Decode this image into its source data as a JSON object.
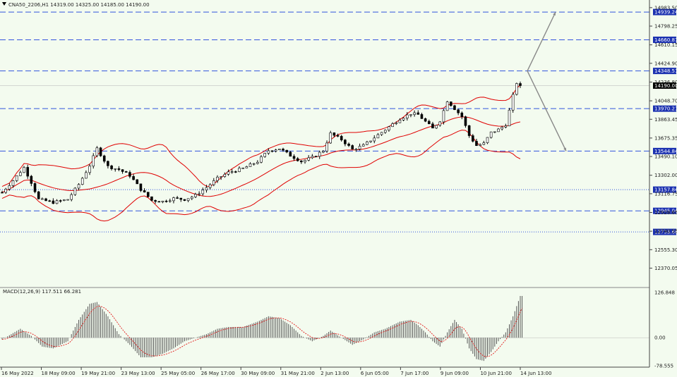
{
  "header": {
    "symbol_text": "CNA50_2206,H1  14319.00 14325.00 14185.00 14190.00",
    "macd_text": "MACD(12,26,9) 117.511 66.281"
  },
  "colors": {
    "background": "#f3fbef",
    "candles": "#000000",
    "bollinger": "#e00000",
    "level_lines": "#3355dd",
    "arrows": "#888888",
    "macd_histogram": "#555555",
    "macd_signal": "#e00000"
  },
  "chart_data": [
    {
      "type": "candlestick",
      "ylim": [
        12190,
        15060
      ],
      "price_ticks": [
        "14983.50",
        "14798.25",
        "14610.15",
        "14424.90",
        "14236.80",
        "14048.70",
        "13863.45",
        "13675.35",
        "13490.10",
        "13302.00",
        "13116.75",
        "12928.65",
        "12740.55",
        "12555.30",
        "12370.05"
      ],
      "time_labels": [
        "16 May 2022",
        "18 May 09:00",
        "19 May 21:00",
        "23 May 13:00",
        "25 May 05:00",
        "26 May 17:00",
        "30 May 09:00",
        "31 May 21:00",
        "2 Jun 13:00",
        "6 Jun 05:00",
        "7 Jun 17:00",
        "9 Jun 09:00",
        "10 Jun 21:00",
        "14 Jun 13:00"
      ],
      "current_price": "14190.00",
      "levels": [
        {
          "value": 14939.24,
          "label": "14939.24",
          "style": "dashed"
        },
        {
          "value": 14660.87,
          "label": "14660.87",
          "style": "dashed"
        },
        {
          "value": 14348.51,
          "label": "14348.51",
          "style": "dashed"
        },
        {
          "value": 13970.21,
          "label": "13970.21",
          "style": "dashed"
        },
        {
          "value": 13544.84,
          "label": "13544.84",
          "style": "dashed"
        },
        {
          "value": 13157.84,
          "label": "13157.84",
          "style": "dotted"
        },
        {
          "value": 12945.04,
          "label": "12945.04",
          "style": "dashed"
        },
        {
          "value": 12733.68,
          "label": "12733.68",
          "style": "dotted"
        }
      ],
      "arrows": [
        [
          [
            0.0,
            14348
          ],
          [
            8.0,
            14939
          ]
        ],
        [
          [
            0.0,
            14348
          ],
          [
            11.0,
            13544
          ]
        ]
      ],
      "price_path": [
        [
          0,
          13130
        ],
        [
          3,
          13250
        ],
        [
          6,
          13380
        ],
        [
          8,
          13230
        ],
        [
          10,
          13060
        ],
        [
          14,
          13030
        ],
        [
          18,
          13060
        ],
        [
          21,
          13210
        ],
        [
          24,
          13400
        ],
        [
          26,
          13570
        ],
        [
          29,
          13390
        ],
        [
          32,
          13360
        ],
        [
          35,
          13300
        ],
        [
          38,
          13160
        ],
        [
          41,
          13050
        ],
        [
          44,
          13040
        ],
        [
          47,
          13070
        ],
        [
          50,
          13060
        ],
        [
          53,
          13100
        ],
        [
          56,
          13180
        ],
        [
          59,
          13270
        ],
        [
          62,
          13330
        ],
        [
          66,
          13370
        ],
        [
          70,
          13440
        ],
        [
          73,
          13550
        ],
        [
          76,
          13570
        ],
        [
          79,
          13500
        ],
        [
          82,
          13440
        ],
        [
          85,
          13480
        ],
        [
          88,
          13550
        ],
        [
          90,
          13720
        ],
        [
          93,
          13660
        ],
        [
          96,
          13560
        ],
        [
          99,
          13600
        ],
        [
          102,
          13680
        ],
        [
          105,
          13760
        ],
        [
          109,
          13870
        ],
        [
          112,
          13920
        ],
        [
          114,
          13910
        ],
        [
          116,
          13840
        ],
        [
          118,
          13770
        ],
        [
          120,
          13850
        ],
        [
          122,
          14050
        ],
        [
          124,
          13970
        ],
        [
          126,
          13890
        ],
        [
          128,
          13700
        ],
        [
          130,
          13600
        ],
        [
          132,
          13620
        ],
        [
          134,
          13730
        ],
        [
          136,
          13760
        ],
        [
          138,
          13810
        ],
        [
          139,
          13950
        ],
        [
          140,
          14100
        ],
        [
          141,
          14230
        ],
        [
          142,
          14190
        ]
      ],
      "macd_path": [
        [
          0,
          -5
        ],
        [
          5,
          25
        ],
        [
          8,
          5
        ],
        [
          11,
          -25
        ],
        [
          14,
          -30
        ],
        [
          18,
          -10
        ],
        [
          21,
          50
        ],
        [
          24,
          95
        ],
        [
          26,
          100
        ],
        [
          29,
          60
        ],
        [
          32,
          10
        ],
        [
          35,
          -20
        ],
        [
          38,
          -55
        ],
        [
          41,
          -55
        ],
        [
          44,
          -45
        ],
        [
          47,
          -30
        ],
        [
          50,
          -10
        ],
        [
          53,
          0
        ],
        [
          56,
          10
        ],
        [
          59,
          25
        ],
        [
          62,
          30
        ],
        [
          66,
          30
        ],
        [
          70,
          45
        ],
        [
          73,
          60
        ],
        [
          76,
          55
        ],
        [
          79,
          35
        ],
        [
          82,
          5
        ],
        [
          85,
          -10
        ],
        [
          88,
          5
        ],
        [
          90,
          20
        ],
        [
          93,
          0
        ],
        [
          96,
          -20
        ],
        [
          99,
          -5
        ],
        [
          102,
          15
        ],
        [
          105,
          25
        ],
        [
          109,
          45
        ],
        [
          112,
          50
        ],
        [
          114,
          35
        ],
        [
          116,
          15
        ],
        [
          118,
          -10
        ],
        [
          120,
          -25
        ],
        [
          122,
          15
        ],
        [
          124,
          50
        ],
        [
          126,
          25
        ],
        [
          128,
          -30
        ],
        [
          130,
          -60
        ],
        [
          132,
          -65
        ],
        [
          134,
          -40
        ],
        [
          136,
          -10
        ],
        [
          138,
          15
        ],
        [
          140,
          60
        ],
        [
          142,
          117
        ]
      ]
    },
    {
      "type": "macd",
      "ylim": [
        -78.555,
        126.848
      ],
      "ticks": [
        "126.848",
        "0.00",
        "-78.555"
      ]
    }
  ]
}
